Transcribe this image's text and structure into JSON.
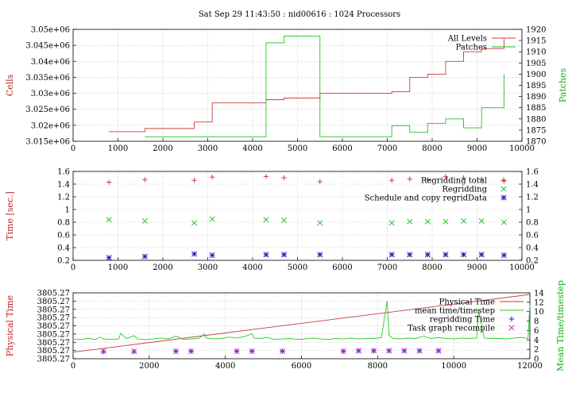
{
  "chart_data": [
    {
      "type": "line",
      "title": "Sat Sep 29 11:43:50 : nid00616 : 1024 Processors",
      "ylabel": "Cells",
      "y2label": "Patches",
      "xlim": [
        0,
        10000
      ],
      "ylim": [
        3015000,
        3050000
      ],
      "y2lim": [
        1870,
        1920
      ],
      "x_ticks": [
        0,
        1000,
        2000,
        3000,
        4000,
        5000,
        6000,
        7000,
        8000,
        9000,
        10000
      ],
      "y_ticks": [
        "3.015e+06",
        "3.02e+06",
        "3.025e+06",
        "3.03e+06",
        "3.035e+06",
        "3.04e+06",
        "3.045e+06",
        "3.05e+06"
      ],
      "y_tick_values": [
        3015000,
        3020000,
        3025000,
        3030000,
        3035000,
        3040000,
        3045000,
        3050000
      ],
      "y2_ticks": [
        1870,
        1875,
        1880,
        1885,
        1890,
        1895,
        1900,
        1905,
        1910,
        1915,
        1920
      ],
      "grid": true,
      "legend_position": "top-right",
      "series": [
        {
          "name": "All Levels",
          "axis": "left",
          "color": "#c83c3c",
          "style": "step",
          "x": [
            800,
            1600,
            2700,
            3100,
            4300,
            4700,
            5500,
            7100,
            7500,
            7900,
            8300,
            8700,
            9100,
            9600
          ],
          "y": [
            3018000,
            3019000,
            3021000,
            3027000,
            3028000,
            3028500,
            3030000,
            3030500,
            3035000,
            3036000,
            3040000,
            3043000,
            3044000,
            3047000
          ]
        },
        {
          "name": "Patches",
          "axis": "right",
          "color": "#20c020",
          "style": "step",
          "x": [
            1600,
            3100,
            4300,
            4700,
            5500,
            7100,
            7500,
            7900,
            8300,
            8700,
            9100,
            9600
          ],
          "y": [
            1872,
            1872,
            1914,
            1917,
            1872,
            1877,
            1874,
            1878,
            1880,
            1876,
            1885,
            1900
          ]
        }
      ]
    },
    {
      "type": "scatter",
      "ylabel": "Time [sec.]",
      "xlim": [
        0,
        10000
      ],
      "ylim": [
        0.2,
        1.6
      ],
      "y2lim": [
        0.2,
        1.6
      ],
      "x_ticks": [
        0,
        1000,
        2000,
        3000,
        4000,
        5000,
        6000,
        7000,
        8000,
        9000,
        10000
      ],
      "y_ticks": [
        0.2,
        0.4,
        0.6,
        0.8,
        1,
        1.2,
        1.4,
        1.6
      ],
      "y2_ticks": [
        0.2,
        0.4,
        0.6,
        0.8,
        1,
        1.2,
        1.4,
        1.6
      ],
      "grid": true,
      "legend_position": "top-right",
      "x": [
        800,
        1600,
        2700,
        3100,
        4300,
        4700,
        5500,
        7100,
        7500,
        7900,
        8300,
        8700,
        9100,
        9600
      ],
      "series": [
        {
          "name": "Regridding total",
          "marker": "plus",
          "color": "#d04040",
          "values": [
            1.43,
            1.47,
            1.46,
            1.51,
            1.52,
            1.5,
            1.44,
            1.46,
            1.48,
            1.47,
            1.52,
            1.5,
            1.48,
            1.45
          ]
        },
        {
          "name": "Regridding",
          "marker": "cross",
          "color": "#30c030",
          "values": [
            0.84,
            0.82,
            0.79,
            0.85,
            0.84,
            0.83,
            0.79,
            0.79,
            0.81,
            0.81,
            0.81,
            0.82,
            0.82,
            0.8
          ]
        },
        {
          "name": "Schedule and copy regridData",
          "marker": "star",
          "color": "#2020b0",
          "values": [
            0.24,
            0.26,
            0.3,
            0.28,
            0.29,
            0.29,
            0.29,
            0.29,
            0.29,
            0.29,
            0.29,
            0.29,
            0.29,
            0.28
          ]
        }
      ]
    },
    {
      "type": "line",
      "ylabel": "Physical Time",
      "y2label": "Mean Time/timestep",
      "xlim": [
        0,
        12000
      ],
      "ylim": [
        0,
        8
      ],
      "y2lim": [
        0,
        14
      ],
      "x_ticks": [
        0,
        2000,
        4000,
        6000,
        8000,
        10000,
        12000
      ],
      "y_ticks": [
        "3805.27",
        "3805.27",
        "3805.27",
        "3805.27",
        "3805.27",
        "3805.27",
        "3805.27",
        "3805.27",
        "3805.27"
      ],
      "y2_ticks": [
        0,
        2,
        4,
        6,
        8,
        10,
        12,
        14
      ],
      "grid": true,
      "legend_position": "top-right",
      "series": [
        {
          "name": "Physical Time",
          "axis": "left",
          "color": "#c83c3c",
          "style": "line",
          "x": [
            0,
            12000
          ],
          "y": [
            0.8,
            7.8
          ]
        },
        {
          "name": "mean time/timestep",
          "axis": "right",
          "color": "#20d020",
          "style": "line",
          "x": [
            0,
            200,
            400,
            600,
            700,
            800,
            1000,
            1200,
            1250,
            1400,
            1600,
            1700,
            1900,
            2100,
            2300,
            2500,
            2700,
            2900,
            3100,
            3300,
            3450,
            3500,
            3700,
            3900,
            4100,
            4300,
            4500,
            4700,
            4750,
            4900,
            5100,
            5300,
            5500,
            5700,
            5900,
            6100,
            6300,
            6500,
            6700,
            6900,
            7100,
            7300,
            7500,
            7700,
            7900,
            8100,
            8250,
            8300,
            8400,
            8600,
            8800,
            9000,
            9200,
            9400,
            9600,
            9800,
            10000,
            10200,
            10400,
            10600,
            10650,
            10800,
            11000,
            11200,
            11400,
            11600,
            11800,
            11950,
            12000
          ],
          "y": [
            4.1,
            4.1,
            4.3,
            4.1,
            4.6,
            4.2,
            4.1,
            4.2,
            5.4,
            4.3,
            4.9,
            4.2,
            4.1,
            4.2,
            4.4,
            4.2,
            4.8,
            4.1,
            4.2,
            4.3,
            5.3,
            4.4,
            4.2,
            4.3,
            4.6,
            4.4,
            4.7,
            5.3,
            4.4,
            4.3,
            4.5,
            4.1,
            4.2,
            4.3,
            4.1,
            4.2,
            4.4,
            4.2,
            4.1,
            4.3,
            4.2,
            4.4,
            4.2,
            4.3,
            4.3,
            4.5,
            12.3,
            5.0,
            4.3,
            4.2,
            4.4,
            4.3,
            4.8,
            4.3,
            4.5,
            4.3,
            4.2,
            4.4,
            4.3,
            4.4,
            10.2,
            4.4,
            4.3,
            4.3,
            4.2,
            4.4,
            4.5,
            4.3,
            11.5
          ]
        },
        {
          "name": "regridding Time",
          "axis": "right",
          "marker": "plus",
          "color": "#2020b0",
          "x": [
            800,
            1600,
            2700,
            3100,
            4300,
            4700,
            5500,
            7100,
            7500,
            7900,
            8300,
            8700,
            9100,
            9600
          ],
          "y": [
            1.5,
            1.5,
            1.6,
            1.6,
            1.6,
            1.6,
            1.6,
            1.6,
            1.7,
            1.7,
            1.7,
            1.7,
            1.7,
            1.7
          ]
        },
        {
          "name": "Task graph recompile",
          "axis": "right",
          "marker": "cross",
          "color": "#c020c0",
          "x": [
            800,
            1600,
            2700,
            3100,
            4300,
            4700,
            5500,
            7100,
            7500,
            7900,
            8300,
            8700,
            9100,
            9600
          ],
          "y": [
            1.6,
            1.6,
            1.6,
            1.6,
            1.6,
            1.6,
            1.6,
            1.6,
            1.7,
            1.7,
            1.7,
            1.7,
            1.7,
            1.7
          ]
        }
      ]
    }
  ]
}
